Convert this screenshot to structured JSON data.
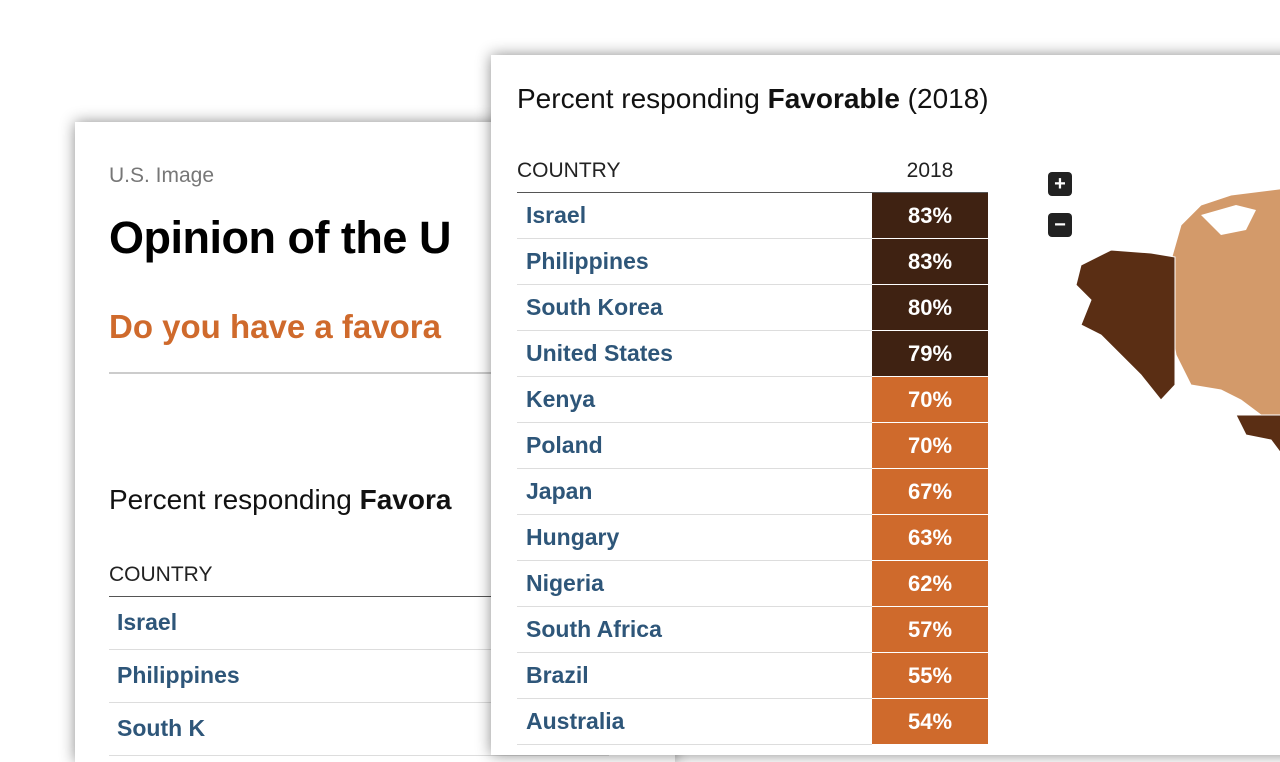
{
  "back_card": {
    "kicker": "U.S. Image",
    "title": "Opinion of the U",
    "question": "Do you have a favora",
    "subtitle": {
      "prefix": "Percent responding ",
      "bold": "Favora"
    },
    "table": {
      "header": "COUNTRY",
      "rows": [
        "Israel",
        "Philippines",
        "South K"
      ]
    }
  },
  "front_card": {
    "subtitle": {
      "prefix": "Percent responding ",
      "bold": "Favorable",
      "suffix": " (2018)"
    },
    "table": {
      "headers": [
        "COUNTRY",
        "2018"
      ],
      "rows": [
        {
          "country": "Israel",
          "value": "83%",
          "color": "#3f2212"
        },
        {
          "country": "Philippines",
          "value": "83%",
          "color": "#3f2212"
        },
        {
          "country": "South Korea",
          "value": "80%",
          "color": "#3f2212"
        },
        {
          "country": "United States",
          "value": "79%",
          "color": "#3f2212"
        },
        {
          "country": "Kenya",
          "value": "70%",
          "color": "#cf6a2c"
        },
        {
          "country": "Poland",
          "value": "70%",
          "color": "#cf6a2c"
        },
        {
          "country": "Japan",
          "value": "67%",
          "color": "#cf6a2c"
        },
        {
          "country": "Hungary",
          "value": "63%",
          "color": "#cf6a2c"
        },
        {
          "country": "Nigeria",
          "value": "62%",
          "color": "#cf6a2c"
        },
        {
          "country": "South Africa",
          "value": "57%",
          "color": "#cf6a2c"
        },
        {
          "country": "Brazil",
          "value": "55%",
          "color": "#cf6a2c"
        },
        {
          "country": "Australia",
          "value": "54%",
          "color": "#cf6a2c"
        }
      ]
    },
    "zoom": [
      "+",
      "−"
    ]
  }
}
